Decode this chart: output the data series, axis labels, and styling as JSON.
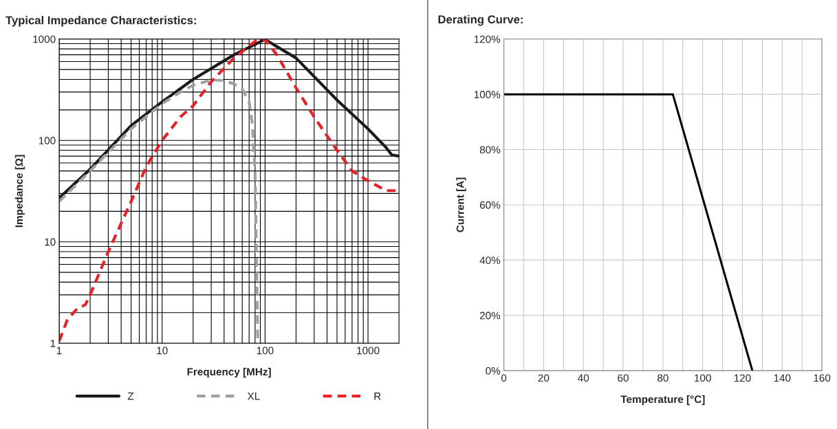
{
  "chart_data": [
    {
      "type": "line",
      "title": "Typical Impedance Characteristics:",
      "xlabel": "Frequency [MHz]",
      "ylabel": "Impedance [Ω]",
      "log": "xy",
      "grid": true,
      "legend": "bottom",
      "xlim": [
        1,
        2000
      ],
      "ylim": [
        1,
        1000
      ],
      "xticks": [
        1,
        {
          "value": 2,
          "label": null
        },
        {
          "value": 3,
          "label": null
        },
        {
          "value": 4,
          "label": null
        },
        {
          "value": 5,
          "label": null
        },
        {
          "value": 6,
          "label": null
        },
        {
          "value": 7,
          "label": null
        },
        {
          "value": 8,
          "label": null
        },
        {
          "value": 9,
          "label": null
        },
        10,
        {
          "value": 20,
          "label": null
        },
        {
          "value": 30,
          "label": null
        },
        {
          "value": 40,
          "label": null
        },
        {
          "value": 50,
          "label": null
        },
        {
          "value": 60,
          "label": null
        },
        {
          "value": 70,
          "label": null
        },
        {
          "value": 80,
          "label": null
        },
        {
          "value": 90,
          "label": null
        },
        100,
        {
          "value": 200,
          "label": null
        },
        {
          "value": 300,
          "label": null
        },
        {
          "value": 400,
          "label": null
        },
        {
          "value": 500,
          "label": null
        },
        {
          "value": 600,
          "label": null
        },
        {
          "value": 700,
          "label": null
        },
        {
          "value": 800,
          "label": null
        },
        {
          "value": 900,
          "label": null
        },
        1000
      ],
      "yticks": [
        1,
        {
          "value": 2,
          "label": null
        },
        {
          "value": 3,
          "label": null
        },
        {
          "value": 4,
          "label": null
        },
        {
          "value": 5,
          "label": null
        },
        {
          "value": 6,
          "label": null
        },
        {
          "value": 7,
          "label": null
        },
        {
          "value": 8,
          "label": null
        },
        {
          "value": 9,
          "label": null
        },
        10,
        {
          "value": 20,
          "label": null
        },
        {
          "value": 30,
          "label": null
        },
        {
          "value": 40,
          "label": null
        },
        {
          "value": 50,
          "label": null
        },
        {
          "value": 60,
          "label": null
        },
        {
          "value": 70,
          "label": null
        },
        {
          "value": 80,
          "label": null
        },
        {
          "value": 90,
          "label": null
        },
        100,
        {
          "value": 200,
          "label": null
        },
        {
          "value": 300,
          "label": null
        },
        {
          "value": 400,
          "label": null
        },
        {
          "value": 500,
          "label": null
        },
        {
          "value": 600,
          "label": null
        },
        {
          "value": 700,
          "label": null
        },
        {
          "value": 800,
          "label": null
        },
        {
          "value": 900,
          "label": null
        },
        1000
      ],
      "series": [
        {
          "name": "Z",
          "color": "#1a1a1a",
          "line_style": "solid",
          "x": [
            1,
            2,
            5,
            10,
            20,
            50,
            100,
            200,
            500,
            1000,
            1500,
            1700,
            2000
          ],
          "values": [
            27,
            52,
            140,
            240,
            400,
            700,
            990,
            650,
            250,
            130,
            85,
            72,
            70
          ]
        },
        {
          "name": "XL",
          "color": "#a0a0a0",
          "line_style": "dashed",
          "x": [
            1,
            2,
            5,
            10,
            15,
            20,
            30,
            40,
            50,
            60,
            70,
            75,
            80,
            83,
            85
          ],
          "values": [
            25,
            50,
            130,
            230,
            300,
            350,
            395,
            390,
            360,
            320,
            240,
            150,
            50,
            5,
            1
          ]
        },
        {
          "name": "R",
          "color": "#e8202a",
          "line_style": "dashed",
          "x": [
            1,
            1.2,
            1.5,
            1.8,
            2,
            3,
            5,
            7,
            10,
            15,
            20,
            30,
            50,
            80,
            100,
            130,
            200,
            300,
            500,
            700,
            1000,
            1500,
            2000
          ],
          "values": [
            1.05,
            1.7,
            2.2,
            2.4,
            3,
            8,
            25,
            55,
            100,
            170,
            220,
            380,
            650,
            950,
            990,
            700,
            330,
            170,
            80,
            50,
            40,
            32,
            32
          ]
        }
      ]
    },
    {
      "type": "line",
      "title": "Derating Curve:",
      "xlabel": "Temperature [°C]",
      "ylabel": "Current [A]",
      "grid": true,
      "xlim": [
        0,
        160
      ],
      "ylim": [
        0,
        120
      ],
      "xticks": [
        0,
        {
          "value": 10,
          "label": null
        },
        20,
        {
          "value": 30,
          "label": null
        },
        40,
        {
          "value": 50,
          "label": null
        },
        60,
        {
          "value": 70,
          "label": null
        },
        80,
        {
          "value": 90,
          "label": null
        },
        100,
        {
          "value": 110,
          "label": null
        },
        120,
        {
          "value": 130,
          "label": null
        },
        140,
        {
          "value": 150,
          "label": null
        },
        160
      ],
      "yticks": [
        {
          "value": 0,
          "label": "0%"
        },
        {
          "value": 20,
          "label": "20%"
        },
        {
          "value": 40,
          "label": "40%"
        },
        {
          "value": 60,
          "label": "60%"
        },
        {
          "value": 80,
          "label": "80%"
        },
        {
          "value": 100,
          "label": "100%"
        },
        {
          "value": 120,
          "label": "120%"
        }
      ],
      "series": [
        {
          "color": "#000000",
          "line_style": "solid",
          "x": [
            0,
            85,
            125
          ],
          "values": [
            100,
            100,
            0
          ]
        }
      ]
    }
  ]
}
